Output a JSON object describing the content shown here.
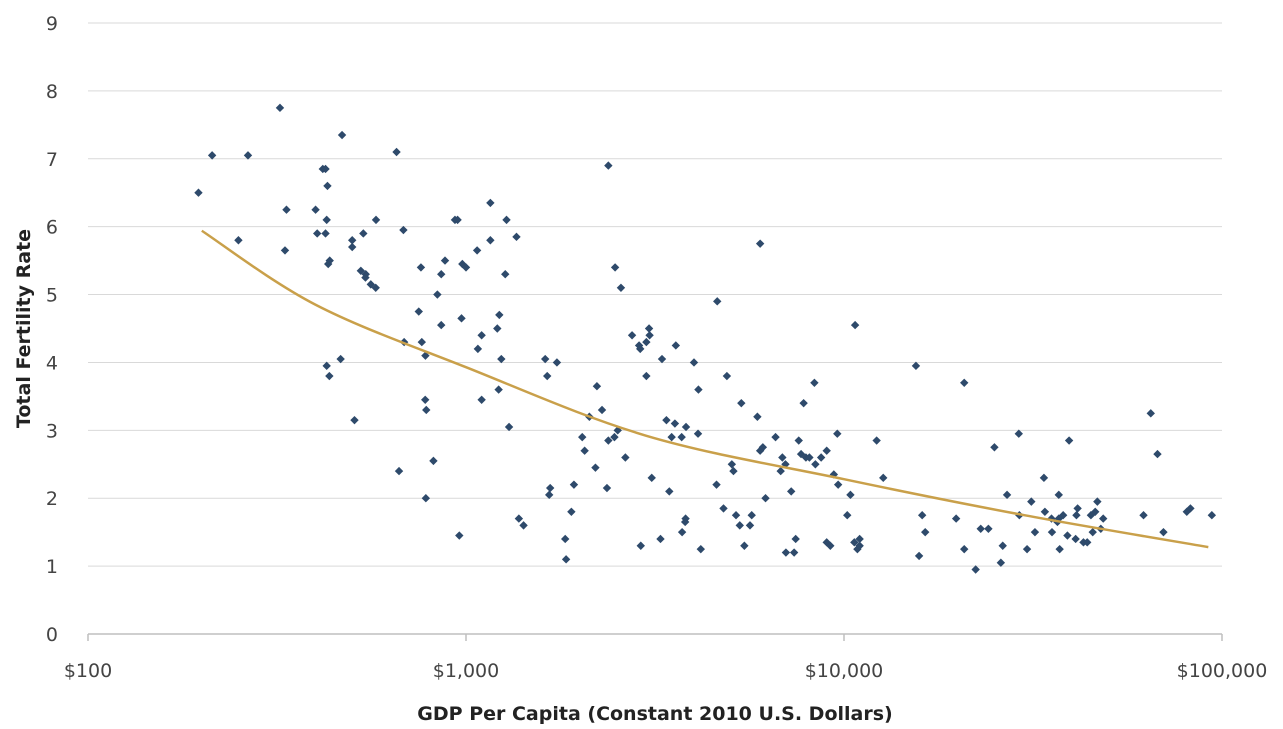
{
  "chart_data": {
    "type": "scatter",
    "title": "",
    "xlabel": "GDP Per Capita (Constant  2010 U.S. Dollars)",
    "ylabel": "Total Fertility Rate",
    "x_scale": "log",
    "xlim": [
      100,
      100000
    ],
    "ylim": [
      0,
      9
    ],
    "x_ticks": [
      100,
      1000,
      10000,
      100000
    ],
    "x_tick_labels": [
      "$100",
      "$1,000",
      "$10,000",
      "$100,000"
    ],
    "y_ticks": [
      0,
      1,
      2,
      3,
      4,
      5,
      6,
      7,
      8,
      9
    ],
    "y_tick_labels": [
      "0",
      "1",
      "2",
      "3",
      "4",
      "5",
      "6",
      "7",
      "8",
      "9"
    ],
    "grid": "horizontal",
    "legend": "none",
    "colors": {
      "points": "#2e4a6b",
      "trendline": "#c9a04a",
      "grid": "#d9d9d9",
      "axis": "#bfbfbf"
    },
    "series": [
      {
        "kind": "points",
        "points": [
          [
            196,
            6.5
          ],
          [
            213,
            7.05
          ],
          [
            250,
            5.8
          ],
          [
            265,
            7.05
          ],
          [
            322,
            7.75
          ],
          [
            332,
            5.65
          ],
          [
            335,
            6.25
          ],
          [
            400,
            6.25
          ],
          [
            404,
            5.9
          ],
          [
            418,
            6.85
          ],
          [
            425,
            6.85
          ],
          [
            425,
            5.9
          ],
          [
            428,
            6.1
          ],
          [
            430,
            6.6
          ],
          [
            432,
            5.45
          ],
          [
            436,
            5.5
          ],
          [
            428,
            3.95
          ],
          [
            435,
            3.8
          ],
          [
            470,
            7.35
          ],
          [
            466,
            4.05
          ],
          [
            500,
            5.8
          ],
          [
            500,
            5.7
          ],
          [
            507,
            3.15
          ],
          [
            527,
            5.35
          ],
          [
            535,
            5.9
          ],
          [
            542,
            5.25
          ],
          [
            543,
            5.3
          ],
          [
            560,
            5.15
          ],
          [
            577,
            5.1
          ],
          [
            578,
            6.1
          ],
          [
            655,
            7.1
          ],
          [
            665,
            2.4
          ],
          [
            683,
            5.95
          ],
          [
            686,
            4.3
          ],
          [
            750,
            4.75
          ],
          [
            760,
            5.4
          ],
          [
            764,
            4.3
          ],
          [
            780,
            3.45
          ],
          [
            781,
            4.1
          ],
          [
            783,
            2.0
          ],
          [
            785,
            3.3
          ],
          [
            820,
            2.55
          ],
          [
            840,
            5.0
          ],
          [
            860,
            5.3
          ],
          [
            860,
            4.55
          ],
          [
            880,
            5.5
          ],
          [
            935,
            6.1
          ],
          [
            950,
            6.1
          ],
          [
            960,
            1.45
          ],
          [
            973,
            4.65
          ],
          [
            978,
            5.45
          ],
          [
            1000,
            5.4
          ],
          [
            1070,
            5.65
          ],
          [
            1075,
            4.2
          ],
          [
            1100,
            3.45
          ],
          [
            1100,
            4.4
          ],
          [
            1160,
            6.35
          ],
          [
            1160,
            5.8
          ],
          [
            1210,
            4.5
          ],
          [
            1220,
            3.6
          ],
          [
            1225,
            4.7
          ],
          [
            1240,
            4.05
          ],
          [
            1270,
            5.3
          ],
          [
            1280,
            6.1
          ],
          [
            1300,
            3.05
          ],
          [
            1360,
            5.85
          ],
          [
            1380,
            1.7
          ],
          [
            1420,
            1.6
          ],
          [
            1620,
            4.05
          ],
          [
            1640,
            3.8
          ],
          [
            1660,
            2.05
          ],
          [
            1670,
            2.15
          ],
          [
            1740,
            4.0
          ],
          [
            1830,
            1.4
          ],
          [
            1840,
            1.1
          ],
          [
            1900,
            1.8
          ],
          [
            1930,
            2.2
          ],
          [
            2030,
            2.9
          ],
          [
            2060,
            2.7
          ],
          [
            2120,
            3.2
          ],
          [
            2200,
            2.45
          ],
          [
            2220,
            3.65
          ],
          [
            2290,
            3.3
          ],
          [
            2360,
            2.15
          ],
          [
            2380,
            6.9
          ],
          [
            2380,
            2.85
          ],
          [
            2470,
            2.9
          ],
          [
            2480,
            5.4
          ],
          [
            2520,
            3.0
          ],
          [
            2570,
            5.1
          ],
          [
            2640,
            2.6
          ],
          [
            2750,
            4.4
          ],
          [
            2870,
            4.25
          ],
          [
            2890,
            4.2
          ],
          [
            2900,
            1.3
          ],
          [
            3000,
            4.3
          ],
          [
            3000,
            3.8
          ],
          [
            3050,
            4.5
          ],
          [
            3060,
            4.4
          ],
          [
            3100,
            2.3
          ],
          [
            3270,
            1.4
          ],
          [
            3300,
            4.05
          ],
          [
            3390,
            3.15
          ],
          [
            3450,
            2.1
          ],
          [
            3500,
            2.9
          ],
          [
            3570,
            3.1
          ],
          [
            3590,
            4.25
          ],
          [
            3720,
            2.9
          ],
          [
            3730,
            1.5
          ],
          [
            3800,
            1.65
          ],
          [
            3810,
            1.7
          ],
          [
            3820,
            3.05
          ],
          [
            4010,
            4.0
          ],
          [
            4110,
            2.95
          ],
          [
            4120,
            3.6
          ],
          [
            4180,
            1.25
          ],
          [
            4600,
            2.2
          ],
          [
            4620,
            4.9
          ],
          [
            4800,
            1.85
          ],
          [
            4900,
            3.8
          ],
          [
            5050,
            2.5
          ],
          [
            5100,
            2.4
          ],
          [
            5180,
            1.75
          ],
          [
            5300,
            1.6
          ],
          [
            5350,
            3.4
          ],
          [
            5450,
            1.3
          ],
          [
            5640,
            1.6
          ],
          [
            5700,
            1.75
          ],
          [
            5900,
            3.2
          ],
          [
            6000,
            2.7
          ],
          [
            6000,
            5.75
          ],
          [
            6100,
            2.75
          ],
          [
            6200,
            2.0
          ],
          [
            6590,
            2.9
          ],
          [
            6800,
            2.4
          ],
          [
            6870,
            2.6
          ],
          [
            7000,
            2.5
          ],
          [
            7020,
            1.2
          ],
          [
            7250,
            2.1
          ],
          [
            7380,
            1.2
          ],
          [
            7450,
            1.4
          ],
          [
            7590,
            2.85
          ],
          [
            7700,
            2.65
          ],
          [
            7820,
            3.4
          ],
          [
            7930,
            2.6
          ],
          [
            8100,
            2.6
          ],
          [
            8350,
            3.7
          ],
          [
            8400,
            2.5
          ],
          [
            8700,
            2.6
          ],
          [
            9000,
            1.35
          ],
          [
            9000,
            2.7
          ],
          [
            9200,
            1.3
          ],
          [
            9400,
            2.35
          ],
          [
            9600,
            2.95
          ],
          [
            9650,
            2.2
          ],
          [
            10200,
            1.75
          ],
          [
            10400,
            2.05
          ],
          [
            10650,
            1.35
          ],
          [
            10700,
            4.55
          ],
          [
            10850,
            1.25
          ],
          [
            11000,
            1.3
          ],
          [
            11000,
            1.4
          ],
          [
            12200,
            2.85
          ],
          [
            12700,
            2.3
          ],
          [
            15500,
            3.95
          ],
          [
            15800,
            1.15
          ],
          [
            16100,
            1.75
          ],
          [
            16400,
            1.5
          ],
          [
            19800,
            1.7
          ],
          [
            20800,
            1.25
          ],
          [
            20800,
            3.7
          ],
          [
            22300,
            0.95
          ],
          [
            23000,
            1.55
          ],
          [
            24100,
            1.55
          ],
          [
            25000,
            2.75
          ],
          [
            26000,
            1.05
          ],
          [
            26300,
            1.3
          ],
          [
            27000,
            2.05
          ],
          [
            29000,
            2.95
          ],
          [
            29100,
            1.75
          ],
          [
            30500,
            1.25
          ],
          [
            31300,
            1.95
          ],
          [
            32000,
            1.5
          ],
          [
            33800,
            2.3
          ],
          [
            34000,
            1.8
          ],
          [
            35400,
            1.7
          ],
          [
            35500,
            1.5
          ],
          [
            36700,
            1.65
          ],
          [
            37000,
            2.05
          ],
          [
            37000,
            1.7
          ],
          [
            37200,
            1.25
          ],
          [
            38000,
            1.75
          ],
          [
            39000,
            1.45
          ],
          [
            39400,
            2.85
          ],
          [
            41000,
            1.4
          ],
          [
            41200,
            1.75
          ],
          [
            41500,
            1.85
          ],
          [
            43000,
            1.35
          ],
          [
            44000,
            1.35
          ],
          [
            45000,
            1.75
          ],
          [
            45500,
            1.5
          ],
          [
            46200,
            1.8
          ],
          [
            46800,
            1.95
          ],
          [
            47800,
            1.55
          ],
          [
            48500,
            1.7
          ],
          [
            62000,
            1.75
          ],
          [
            64800,
            3.25
          ],
          [
            67500,
            2.65
          ],
          [
            70000,
            1.5
          ],
          [
            80700,
            1.8
          ],
          [
            82500,
            1.85
          ],
          [
            94000,
            1.75
          ]
        ]
      },
      {
        "kind": "trendline",
        "points": [
          [
            200,
            5.94
          ],
          [
            400,
            4.85
          ],
          [
            1000,
            3.93
          ],
          [
            3000,
            2.92
          ],
          [
            10000,
            2.28
          ],
          [
            30000,
            1.75
          ],
          [
            92000,
            1.28
          ]
        ]
      }
    ]
  }
}
